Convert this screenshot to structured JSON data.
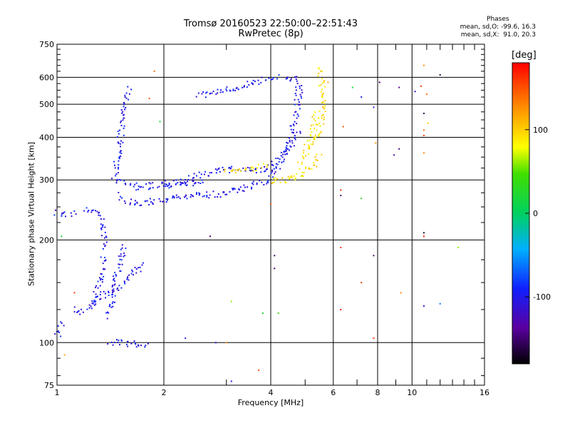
{
  "chart_data": {
    "type": "scatter",
    "title": "Tromsø 20160523 22:50:00–22:51:43",
    "subtitle": "RwPretec (8p)",
    "xlabel": "Frequency [MHz]",
    "ylabel": "Stationary phase Virtual Height [km]",
    "x_scale": "log",
    "y_scale": "log",
    "xlim": [
      1,
      16
    ],
    "ylim": [
      75,
      750
    ],
    "x_ticks": [
      1,
      2,
      4,
      6,
      8,
      10,
      16
    ],
    "x_tick_labels": [
      "1",
      "2",
      "4",
      "6",
      "8",
      "10",
      "16"
    ],
    "x_minor_ticks": [
      3,
      5,
      7,
      9,
      11,
      12,
      13,
      14,
      15
    ],
    "y_ticks": [
      75,
      100,
      200,
      300,
      400,
      500,
      600,
      750
    ],
    "y_tick_labels": [
      "75",
      "100",
      "200",
      "300",
      "400",
      "500",
      "600",
      "750"
    ],
    "grid": true,
    "stats": {
      "heading": "Phases",
      "o_line": "mean, sd,O: -99.6, 16.3",
      "x_line": "mean, sd,X:  91.0, 20.3"
    },
    "colorbar": {
      "unit": "[deg]",
      "range": [
        -180,
        180
      ],
      "ticks": [
        -100,
        0,
        100
      ],
      "tick_labels": [
        "-100",
        "0",
        "100"
      ]
    },
    "series": [
      {
        "mode": "O",
        "phase_deg": -100,
        "traces": [
          {
            "x": [
              1.0,
              1.03,
              1.06,
              1.09,
              1.12
            ],
            "y": [
              240,
              238,
              238,
              240,
              244
            ]
          },
          {
            "x": [
              1.2,
              1.25,
              1.3,
              1.34,
              1.36,
              1.37,
              1.38
            ],
            "y": [
              246,
              244,
              238,
              225,
              210,
              195,
              190
            ]
          },
          {
            "x": [
              1.25,
              1.28,
              1.3,
              1.32,
              1.34,
              1.36
            ],
            "y": [
              130,
              135,
              140,
              150,
              165,
              180
            ]
          },
          {
            "x": [
              1.12,
              1.18,
              1.25,
              1.33,
              1.4,
              1.48,
              1.55,
              1.62,
              1.7,
              1.78
            ],
            "y": [
              125,
              123,
              128,
              135,
              140,
              145,
              150,
              160,
              165,
              170
            ]
          },
          {
            "x": [
              1.4,
              1.44,
              1.48,
              1.52,
              1.56
            ],
            "y": [
              120,
              140,
              160,
              180,
              195
            ]
          },
          {
            "x": [
              1.45,
              1.48,
              1.52,
              1.56,
              1.6
            ],
            "y": [
              300,
              350,
              420,
              500,
              560
            ]
          },
          {
            "x": [
              1.5,
              1.55,
              1.6,
              1.7,
              1.8,
              2.0,
              2.2,
              2.5,
              2.8,
              3.0,
              3.3,
              3.6,
              3.8,
              4.0
            ],
            "y": [
              270,
              262,
              258,
              256,
              258,
              262,
              266,
              270,
              272,
              276,
              282,
              290,
              296,
              305
            ]
          },
          {
            "x": [
              1.5,
              1.6,
              1.7,
              1.8,
              2.0,
              2.2,
              2.4,
              2.6
            ],
            "y": [
              300,
              290,
              285,
              288,
              290,
              292,
              295,
              300
            ]
          },
          {
            "x": [
              2.0,
              2.3,
              2.6,
              2.9,
              3.2,
              3.5,
              3.8,
              4.0,
              4.2,
              4.4,
              4.6,
              4.8
            ],
            "y": [
              292,
              300,
              312,
              320,
              322,
              318,
              320,
              328,
              342,
              360,
              385,
              420
            ]
          },
          {
            "x": [
              4.0,
              4.2,
              4.4,
              4.55,
              4.65,
              4.75,
              4.8
            ],
            "y": [
              310,
              330,
              360,
              400,
              440,
              490,
              540
            ]
          },
          {
            "x": [
              2.5,
              2.8,
              3.0,
              3.3,
              3.6,
              3.8,
              4.0,
              4.2
            ],
            "y": [
              530,
              540,
              550,
              565,
              580,
              590,
              600,
              610
            ]
          },
          {
            "x": [
              4.4,
              4.6,
              4.75,
              4.8,
              4.82
            ],
            "y": [
              590,
              600,
              590,
              560,
              520
            ]
          },
          {
            "x": [
              1.4,
              1.5,
              1.6,
              1.7,
              1.8
            ],
            "y": [
              100,
              100,
              99,
              99,
              98
            ]
          },
          {
            "x": [
              1.0,
              1.02,
              1.04
            ],
            "y": [
              105,
              110,
              114
            ]
          }
        ]
      },
      {
        "mode": "X",
        "phase_deg": 91,
        "traces": [
          {
            "x": [
              4.0,
              4.2,
              4.4,
              4.6,
              4.8,
              5.0,
              5.2,
              5.4,
              5.5
            ],
            "y": [
              296,
              298,
              300,
              304,
              308,
              315,
              325,
              345,
              360
            ]
          },
          {
            "x": [
              5.3,
              5.4,
              5.5,
              5.55,
              5.6,
              5.62,
              5.6,
              5.55,
              5.5,
              5.48
            ],
            "y": [
              380,
              400,
              420,
              450,
              480,
              520,
              560,
              600,
              620,
              640
            ]
          },
          {
            "x": [
              4.8,
              5.0,
              5.2,
              5.3,
              5.4
            ],
            "y": [
              330,
              360,
              400,
              440,
              480
            ]
          },
          {
            "x": [
              3.0,
              3.3,
              3.6,
              3.9
            ],
            "y": [
              318,
              320,
              325,
              330
            ]
          }
        ]
      },
      {
        "mode": "scattered",
        "points": [
          {
            "x": 1.88,
            "y": 625,
            "phase_deg": 140
          },
          {
            "x": 1.82,
            "y": 520,
            "phase_deg": 150
          },
          {
            "x": 1.95,
            "y": 445,
            "phase_deg": 10
          },
          {
            "x": 1.12,
            "y": 140,
            "phase_deg": 160
          },
          {
            "x": 1.03,
            "y": 205,
            "phase_deg": 20
          },
          {
            "x": 1.05,
            "y": 92,
            "phase_deg": 120
          },
          {
            "x": 3.1,
            "y": 132,
            "phase_deg": 60
          },
          {
            "x": 3.8,
            "y": 122,
            "phase_deg": 20
          },
          {
            "x": 4.2,
            "y": 122,
            "phase_deg": 40
          },
          {
            "x": 4.1,
            "y": 180,
            "phase_deg": -150
          },
          {
            "x": 4.1,
            "y": 165,
            "phase_deg": -150
          },
          {
            "x": 4.0,
            "y": 255,
            "phase_deg": 150
          },
          {
            "x": 2.7,
            "y": 205,
            "phase_deg": -150
          },
          {
            "x": 2.3,
            "y": 103,
            "phase_deg": -100
          },
          {
            "x": 2.8,
            "y": 100,
            "phase_deg": -120
          },
          {
            "x": 3.0,
            "y": 100,
            "phase_deg": 130
          },
          {
            "x": 3.1,
            "y": 77,
            "phase_deg": -100
          },
          {
            "x": 3.7,
            "y": 83,
            "phase_deg": 150
          },
          {
            "x": 6.3,
            "y": 280,
            "phase_deg": 170
          },
          {
            "x": 6.3,
            "y": 270,
            "phase_deg": -150
          },
          {
            "x": 6.3,
            "y": 190,
            "phase_deg": 160
          },
          {
            "x": 6.3,
            "y": 125,
            "phase_deg": 170
          },
          {
            "x": 6.4,
            "y": 430,
            "phase_deg": 150
          },
          {
            "x": 6.8,
            "y": 560,
            "phase_deg": 20
          },
          {
            "x": 7.2,
            "y": 525,
            "phase_deg": -100
          },
          {
            "x": 7.2,
            "y": 265,
            "phase_deg": 30
          },
          {
            "x": 7.2,
            "y": 150,
            "phase_deg": 160
          },
          {
            "x": 7.8,
            "y": 490,
            "phase_deg": -100
          },
          {
            "x": 7.8,
            "y": 180,
            "phase_deg": -150
          },
          {
            "x": 7.8,
            "y": 103,
            "phase_deg": 160
          },
          {
            "x": 7.9,
            "y": 385,
            "phase_deg": 120
          },
          {
            "x": 8.1,
            "y": 580,
            "phase_deg": -150
          },
          {
            "x": 8.9,
            "y": 355,
            "phase_deg": -130
          },
          {
            "x": 9.2,
            "y": 370,
            "phase_deg": -150
          },
          {
            "x": 9.3,
            "y": 140,
            "phase_deg": 130
          },
          {
            "x": 9.2,
            "y": 560,
            "phase_deg": -140
          },
          {
            "x": 10.6,
            "y": 565,
            "phase_deg": 160
          },
          {
            "x": 10.8,
            "y": 650,
            "phase_deg": 130
          },
          {
            "x": 10.8,
            "y": 470,
            "phase_deg": -160
          },
          {
            "x": 10.8,
            "y": 420,
            "phase_deg": 140
          },
          {
            "x": 10.8,
            "y": 405,
            "phase_deg": 160
          },
          {
            "x": 10.8,
            "y": 360,
            "phase_deg": 130
          },
          {
            "x": 10.8,
            "y": 210,
            "phase_deg": -170
          },
          {
            "x": 10.8,
            "y": 205,
            "phase_deg": 175
          },
          {
            "x": 10.8,
            "y": 128,
            "phase_deg": -100
          },
          {
            "x": 11.0,
            "y": 535,
            "phase_deg": 140
          },
          {
            "x": 11.1,
            "y": 440,
            "phase_deg": 100
          },
          {
            "x": 12.0,
            "y": 610,
            "phase_deg": -160
          },
          {
            "x": 12.0,
            "y": 130,
            "phase_deg": -60
          },
          {
            "x": 13.5,
            "y": 190,
            "phase_deg": 60
          },
          {
            "x": 10.2,
            "y": 545,
            "phase_deg": -120
          },
          {
            "x": 5.8,
            "y": 580,
            "phase_deg": 120
          }
        ]
      }
    ]
  }
}
